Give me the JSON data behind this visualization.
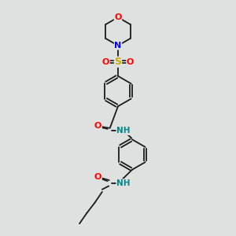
{
  "bg_color": "#dfe0e0",
  "bond_color": "#1a1a1a",
  "colors": {
    "O": "#ff0000",
    "N": "#0000ff",
    "S": "#ccaa00",
    "NH": "#008888",
    "C": "#1a1a1a"
  }
}
